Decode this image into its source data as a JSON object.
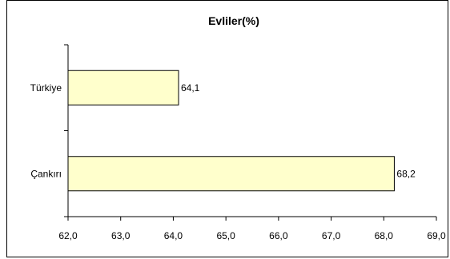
{
  "chart_data": {
    "type": "bar",
    "orientation": "horizontal",
    "title": "Evliler(%)",
    "xlabel": "",
    "ylabel": "",
    "categories": [
      "Türkiye",
      "Çankırı"
    ],
    "values": [
      64.1,
      68.2
    ],
    "value_labels": [
      "64,1",
      "68,2"
    ],
    "xlim": [
      62.0,
      69.0
    ],
    "x_ticks": [
      "62,0",
      "63,0",
      "64,0",
      "65,0",
      "66,0",
      "67,0",
      "68,0",
      "69,0"
    ],
    "bar_color": "#FFFFCC",
    "grid": false,
    "legend": "none"
  }
}
